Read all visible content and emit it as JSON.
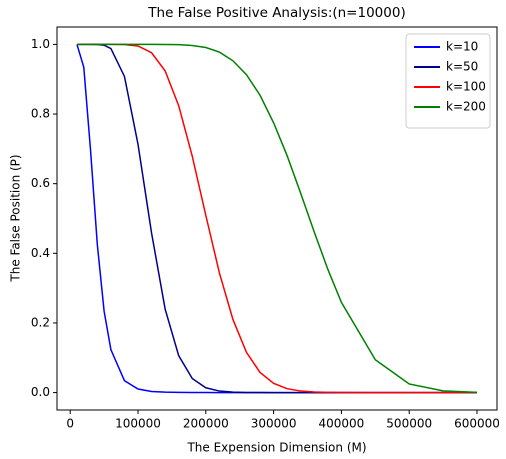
{
  "chart_data": {
    "type": "line",
    "title": "The False Positive Analysis:(n=10000)",
    "x_label": "The Expension Dimension (M)",
    "y_label": "The False Position (P)",
    "x": [
      10000,
      20000,
      30000,
      40000,
      50000,
      60000,
      80000,
      100000,
      120000,
      140000,
      160000,
      180000,
      200000,
      220000,
      240000,
      260000,
      280000,
      300000,
      320000,
      340000,
      360000,
      380000,
      400000,
      450000,
      500000,
      550000,
      600000
    ],
    "series": [
      {
        "name": "k=10",
        "color": "#0000ff",
        "values": [
          0.9995,
          0.9346,
          0.6954,
          0.4247,
          0.2336,
          0.1233,
          0.0342,
          0.0102,
          0.0033,
          0.0012,
          0.0005,
          0.0002,
          0.0001,
          0,
          0,
          0,
          0,
          0,
          0,
          0,
          0,
          0,
          0,
          0,
          0,
          0,
          0
        ]
      },
      {
        "name": "k=50",
        "color": "#00008b",
        "values": [
          1,
          1,
          1,
          0.9998,
          0.9977,
          0.988,
          0.908,
          0.713,
          0.458,
          0.24,
          0.106,
          0.0404,
          0.0138,
          0.0044,
          0.0013,
          0.0004,
          0.0001,
          0,
          0,
          0,
          0,
          0,
          0,
          0,
          0,
          0,
          0
        ]
      },
      {
        "name": "k=100",
        "color": "#ff0000",
        "values": [
          1,
          1,
          1,
          1,
          1,
          1,
          0.9996,
          0.9955,
          0.976,
          0.924,
          0.824,
          0.679,
          0.509,
          0.344,
          0.21,
          0.1154,
          0.0578,
          0.0265,
          0.0112,
          0.0044,
          0.0016,
          0.0006,
          0.0002,
          0,
          0,
          0,
          0
        ]
      },
      {
        "name": "k=200",
        "color": "#008000",
        "values": [
          1,
          1,
          1,
          1,
          1,
          1,
          1,
          1,
          1,
          0.9999,
          0.9993,
          0.997,
          0.991,
          0.978,
          0.953,
          0.913,
          0.854,
          0.775,
          0.68,
          0.572,
          0.461,
          0.354,
          0.259,
          0.0942,
          0.0248,
          0.0048,
          0.0007
        ]
      }
    ],
    "xlim": [
      -19500,
      629500
    ],
    "ylim": [
      -0.05,
      1.05
    ],
    "xticks": [
      0,
      100000,
      200000,
      300000,
      400000,
      500000,
      600000
    ],
    "yticks": [
      {
        "value": 0,
        "label": "0.0"
      },
      0.2,
      0.4,
      0.6,
      0.8,
      {
        "value": 1,
        "label": "1.0"
      }
    ],
    "legend": "upper right"
  }
}
